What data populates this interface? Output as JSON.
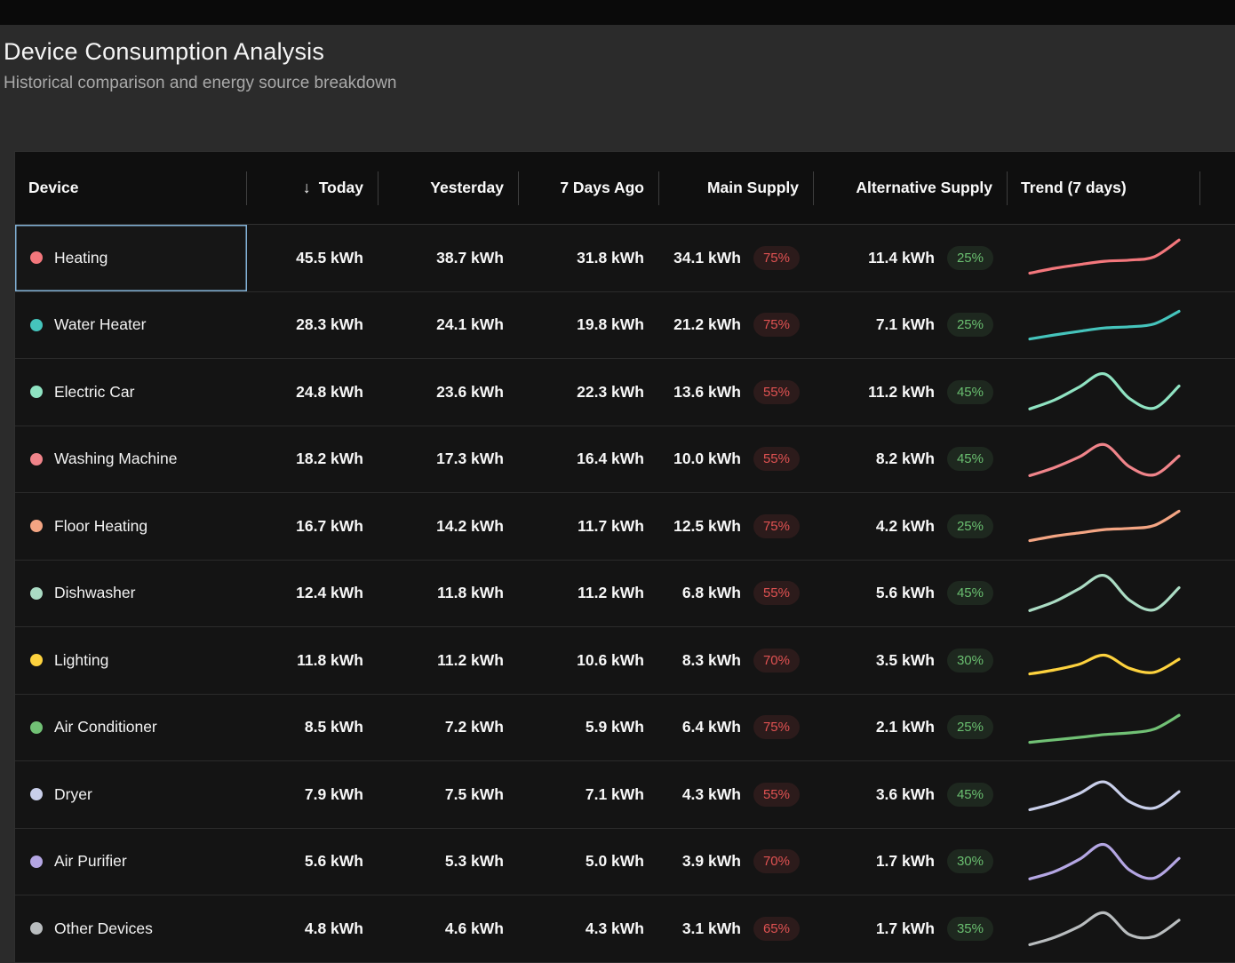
{
  "page": {
    "title": "Device Consumption Analysis",
    "subtitle": "Historical comparison and energy source breakdown"
  },
  "colors": {
    "selection_border": "#82b1d6",
    "main_badge_text": "#e05252",
    "alt_badge_text": "#6abf70",
    "row_divider": "#2b2b2b",
    "table_background": "#141414"
  },
  "table": {
    "columns": [
      "Device",
      "Today",
      "Yesterday",
      "7 Days Ago",
      "Main Supply",
      "Alternative Supply",
      "Trend (7 days)"
    ],
    "sort": {
      "column": "Today",
      "direction": "desc",
      "icon": "↓"
    },
    "rows": [
      {
        "device": "Heating",
        "color": "#f3777c",
        "today": "45.5 kWh",
        "yesterday": "38.7 kWh",
        "seven_days_ago": "31.8 kWh",
        "main_supply": "34.1 kWh",
        "main_pct": "75%",
        "alt_supply": "11.4 kWh",
        "alt_pct": "25%",
        "selected": true,
        "trend": [
          12,
          24,
          33,
          41,
          44,
          52,
          93
        ]
      },
      {
        "device": "Water Heater",
        "color": "#45c4bc",
        "today": "28.3 kWh",
        "yesterday": "24.1 kWh",
        "seven_days_ago": "19.8 kWh",
        "main_supply": "21.2 kWh",
        "main_pct": "75%",
        "alt_supply": "7.1 kWh",
        "alt_pct": "25%",
        "selected": false,
        "trend": [
          16,
          26,
          35,
          43,
          46,
          53,
          84
        ]
      },
      {
        "device": "Electric Car",
        "color": "#8fe3c2",
        "today": "24.8 kWh",
        "yesterday": "23.6 kWh",
        "seven_days_ago": "22.3 kWh",
        "main_supply": "13.6 kWh",
        "main_pct": "55%",
        "alt_supply": "11.2 kWh",
        "alt_pct": "45%",
        "selected": false,
        "trend": [
          8,
          30,
          62,
          94,
          34,
          10,
          64
        ]
      },
      {
        "device": "Washing Machine",
        "color": "#f0848a",
        "today": "18.2 kWh",
        "yesterday": "17.3 kWh",
        "seven_days_ago": "16.4 kWh",
        "main_supply": "10.0 kWh",
        "main_pct": "55%",
        "alt_supply": "8.2 kWh",
        "alt_pct": "45%",
        "selected": false,
        "trend": [
          10,
          30,
          56,
          86,
          32,
          12,
          58
        ]
      },
      {
        "device": "Floor Heating",
        "color": "#f4a583",
        "today": "16.7 kWh",
        "yesterday": "14.2 kWh",
        "seven_days_ago": "11.7 kWh",
        "main_supply": "12.5 kWh",
        "main_pct": "75%",
        "alt_supply": "4.2 kWh",
        "alt_pct": "25%",
        "selected": false,
        "trend": [
          14,
          25,
          33,
          41,
          44,
          51,
          86
        ]
      },
      {
        "device": "Dishwasher",
        "color": "#abdcc4",
        "today": "12.4 kWh",
        "yesterday": "11.8 kWh",
        "seven_days_ago": "11.2 kWh",
        "main_supply": "6.8 kWh",
        "main_pct": "55%",
        "alt_supply": "5.6 kWh",
        "alt_pct": "45%",
        "selected": false,
        "trend": [
          8,
          30,
          62,
          94,
          34,
          10,
          64
        ]
      },
      {
        "device": "Lighting",
        "color": "#fdd23e",
        "today": "11.8 kWh",
        "yesterday": "11.2 kWh",
        "seven_days_ago": "10.6 kWh",
        "main_supply": "8.3 kWh",
        "main_pct": "70%",
        "alt_supply": "3.5 kWh",
        "alt_pct": "30%",
        "selected": false,
        "trend": [
          16,
          26,
          40,
          62,
          30,
          20,
          52
        ]
      },
      {
        "device": "Air Conditioner",
        "color": "#71c175",
        "today": "8.5 kWh",
        "yesterday": "7.2 kWh",
        "seven_days_ago": "5.9 kWh",
        "main_supply": "6.4 kWh",
        "main_pct": "75%",
        "alt_supply": "2.1 kWh",
        "alt_pct": "25%",
        "selected": false,
        "trend": [
          14,
          20,
          26,
          33,
          37,
          46,
          80
        ]
      },
      {
        "device": "Dryer",
        "color": "#c9cfea",
        "today": "7.9 kWh",
        "yesterday": "7.5 kWh",
        "seven_days_ago": "7.1 kWh",
        "main_supply": "4.3 kWh",
        "main_pct": "55%",
        "alt_supply": "3.6 kWh",
        "alt_pct": "45%",
        "selected": false,
        "trend": [
          12,
          28,
          52,
          80,
          32,
          16,
          56
        ]
      },
      {
        "device": "Air Purifier",
        "color": "#b4a6e3",
        "today": "5.6 kWh",
        "yesterday": "5.3 kWh",
        "seven_days_ago": "5.0 kWh",
        "main_supply": "3.9 kWh",
        "main_pct": "70%",
        "alt_supply": "1.7 kWh",
        "alt_pct": "30%",
        "selected": false,
        "trend": [
          8,
          26,
          56,
          92,
          30,
          10,
          58
        ]
      },
      {
        "device": "Other Devices",
        "color": "#b9bdbf",
        "today": "4.8 kWh",
        "yesterday": "4.6 kWh",
        "seven_days_ago": "4.3 kWh",
        "main_supply": "3.1 kWh",
        "main_pct": "65%",
        "alt_supply": "1.7 kWh",
        "alt_pct": "35%",
        "selected": false,
        "trend": [
          10,
          28,
          55,
          88,
          35,
          30,
          70
        ]
      }
    ]
  }
}
